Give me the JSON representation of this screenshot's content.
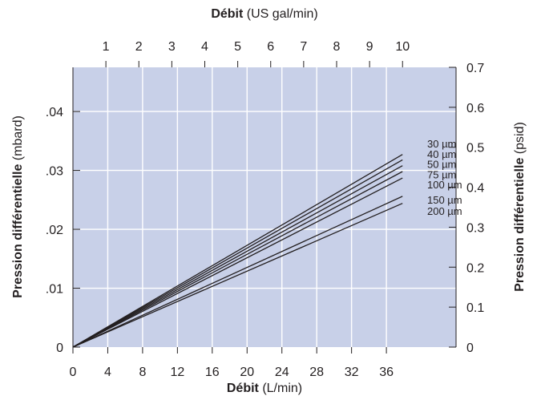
{
  "chart_data": {
    "type": "line",
    "colors": {
      "plot_background": "#c8d0e8",
      "grid": "#ffffff",
      "line": "#231f20",
      "text": "#231f20"
    },
    "grid": true,
    "bottom_axis": {
      "title_bold": "Débit",
      "title_unit": "(L/min)",
      "ticks": [
        "0",
        "4",
        "8",
        "12",
        "16",
        "20",
        "24",
        "28",
        "32",
        "36"
      ],
      "xlim": [
        0,
        44
      ]
    },
    "top_axis": {
      "title_bold": "Débit",
      "title_unit": "(US gal/min)",
      "ticks": [
        "1",
        "2",
        "3",
        "4",
        "5",
        "6",
        "7",
        "8",
        "9",
        "10"
      ]
    },
    "left_axis": {
      "title_bold": "Pression différentielle",
      "title_unit": "(mbard)",
      "ticks": [
        "0",
        ".01",
        ".02",
        ".03",
        ".04"
      ],
      "ylim": [
        0,
        0.0475
      ]
    },
    "right_axis": {
      "title_bold": "Pression différentielle",
      "title_unit": "(psid)",
      "ticks": [
        "0",
        "0.1",
        "0.2",
        "0.3",
        "0.4",
        "0.5",
        "0.6",
        "0.7"
      ]
    },
    "series": [
      {
        "name": "30 µm",
        "x": [
          0,
          37.85
        ],
        "y": [
          0,
          0.0327
        ]
      },
      {
        "name": "40 µm",
        "x": [
          0,
          37.85
        ],
        "y": [
          0,
          0.0318
        ]
      },
      {
        "name": "50 µm",
        "x": [
          0,
          37.85
        ],
        "y": [
          0,
          0.0308
        ]
      },
      {
        "name": "75 µm",
        "x": [
          0,
          37.85
        ],
        "y": [
          0,
          0.0298
        ]
      },
      {
        "name": "100 µm",
        "x": [
          0,
          37.85
        ],
        "y": [
          0,
          0.0287
        ]
      },
      {
        "name": "150 µm",
        "x": [
          0,
          37.85
        ],
        "y": [
          0,
          0.0256
        ]
      },
      {
        "name": "200 µm",
        "x": [
          0,
          37.85
        ],
        "y": [
          0,
          0.0244
        ]
      }
    ]
  }
}
